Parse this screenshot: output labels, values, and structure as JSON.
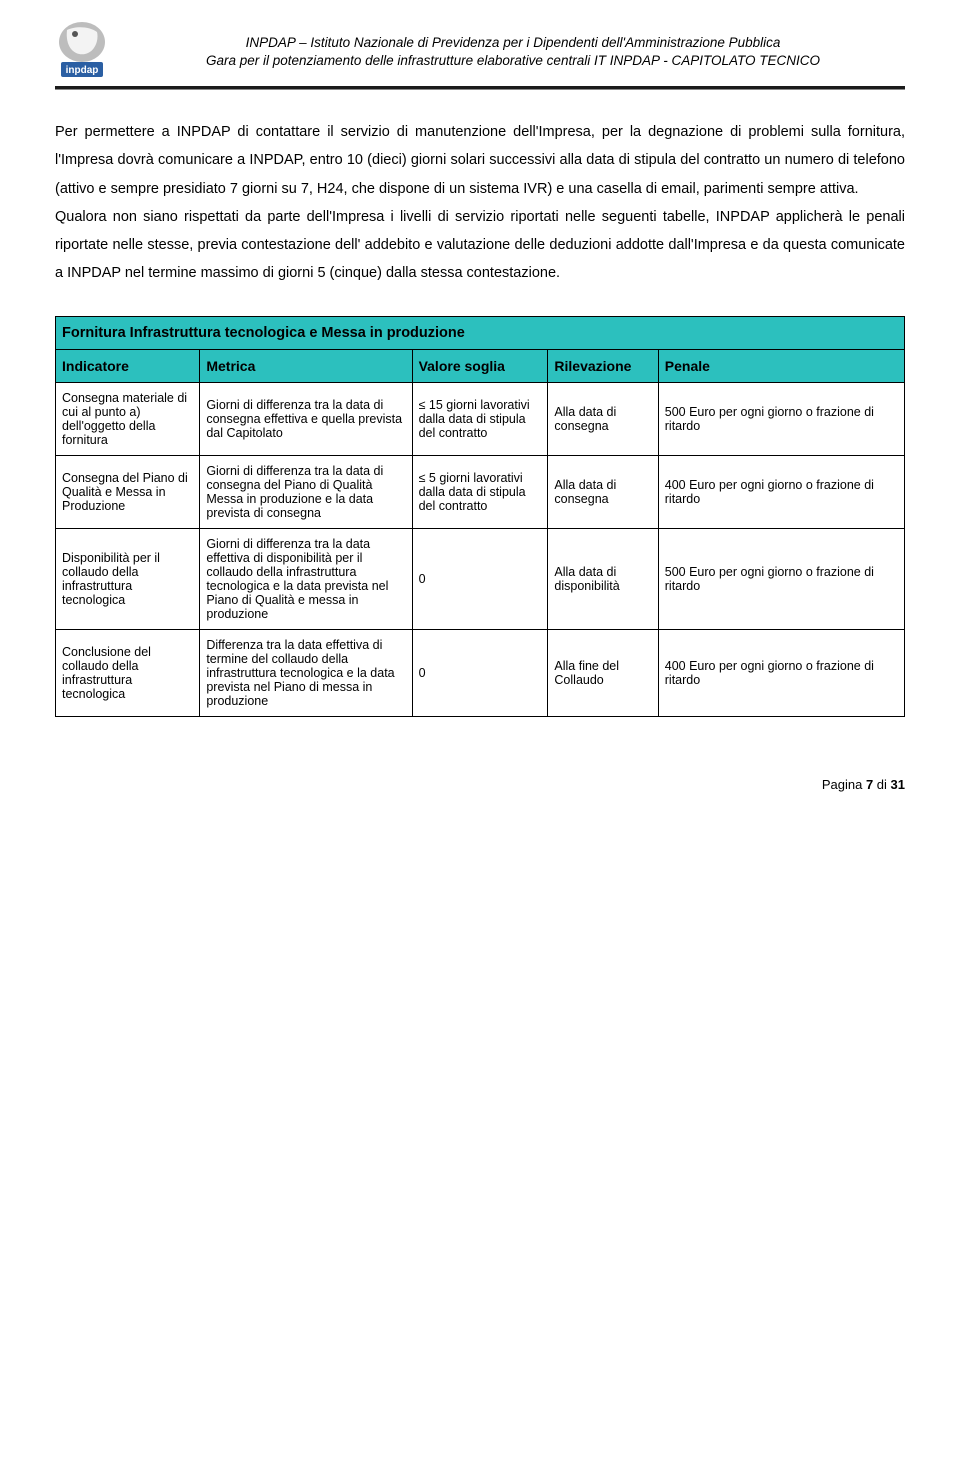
{
  "colors": {
    "table_header_bg": "#2cc0be",
    "logo_blue": "#2b5fa3",
    "logo_gray": "#bdbdbd",
    "rule_dark": "#1b1b1b"
  },
  "header": {
    "org_line": "INPDAP – Istituto Nazionale di Previdenza per i Dipendenti dell'Amministrazione Pubblica",
    "doc_line": "Gara per il potenziamento delle infrastrutture elaborative centrali IT INPDAP - CAPITOLATO TECNICO"
  },
  "body": {
    "p1": "Per permettere a INPDAP di contattare il servizio di manutenzione dell'Impresa, per la degnazione di problemi sulla fornitura, l'Impresa dovrà comunicare a INPDAP, entro 10 (dieci) giorni solari successivi alla data di stipula del contratto un numero di telefono (attivo e sempre presidiato 7 giorni su 7, H24, che dispone di un sistema IVR) e una casella di email, parimenti sempre attiva.",
    "p2": "Qualora non siano rispettati da parte dell'Impresa i livelli di servizio riportati nelle seguenti tabelle, INPDAP applicherà le penali riportate nelle stesse, previa contestazione dell' addebito e valutazione delle deduzioni addotte dall'Impresa e da questa comunicate a INPDAP nel termine massimo di giorni 5 (cinque) dalla stessa contestazione."
  },
  "table": {
    "title": "Fornitura Infrastruttura tecnologica e Messa in produzione",
    "columns": [
      "Indicatore",
      "Metrica",
      "Valore soglia",
      "Rilevazione",
      "Penale"
    ],
    "rows": [
      {
        "indicatore": "Consegna materiale di cui al punto a) dell'oggetto della fornitura",
        "metrica": "Giorni di differenza tra la data di consegna effettiva e quella prevista dal Capitolato",
        "valore": "≤ 15 giorni lavorativi dalla data di stipula del contratto",
        "rilevazione": "Alla data di consegna",
        "penale": "500 Euro per ogni giorno o frazione di ritardo",
        "valore_center": false
      },
      {
        "indicatore": "Consegna del Piano di Qualità e Messa in Produzione",
        "metrica": "Giorni di differenza tra la data di consegna del Piano di Qualità Messa in produzione e la data prevista di consegna",
        "valore": "≤ 5 giorni lavorativi dalla data di stipula del contratto",
        "rilevazione": "Alla data di consegna",
        "penale": "400 Euro per ogni giorno o frazione di ritardo",
        "valore_center": false
      },
      {
        "indicatore": "Disponibilità per il collaudo della infrastruttura tecnologica",
        "metrica": "Giorni di differenza tra la data effettiva di disponibilità per il collaudo della infrastruttura tecnologica e la data prevista nel Piano di Qualità e messa in produzione",
        "valore": "0",
        "rilevazione": "Alla data di disponibilità",
        "penale": "500 Euro per ogni giorno o frazione di ritardo",
        "valore_center": true
      },
      {
        "indicatore": "Conclusione del collaudo della infrastruttura tecnologica",
        "metrica": "Differenza tra la data effettiva di termine del collaudo della infrastruttura tecnologica e la data prevista nel Piano di messa in produzione",
        "valore": "0",
        "rilevazione": "Alla fine del Collaudo",
        "penale": "400 Euro per ogni giorno o frazione di ritardo",
        "valore_center": true
      }
    ]
  },
  "footer": {
    "page_label_prefix": "Pagina ",
    "page_current": "7",
    "page_sep": " di ",
    "page_total": "31"
  }
}
